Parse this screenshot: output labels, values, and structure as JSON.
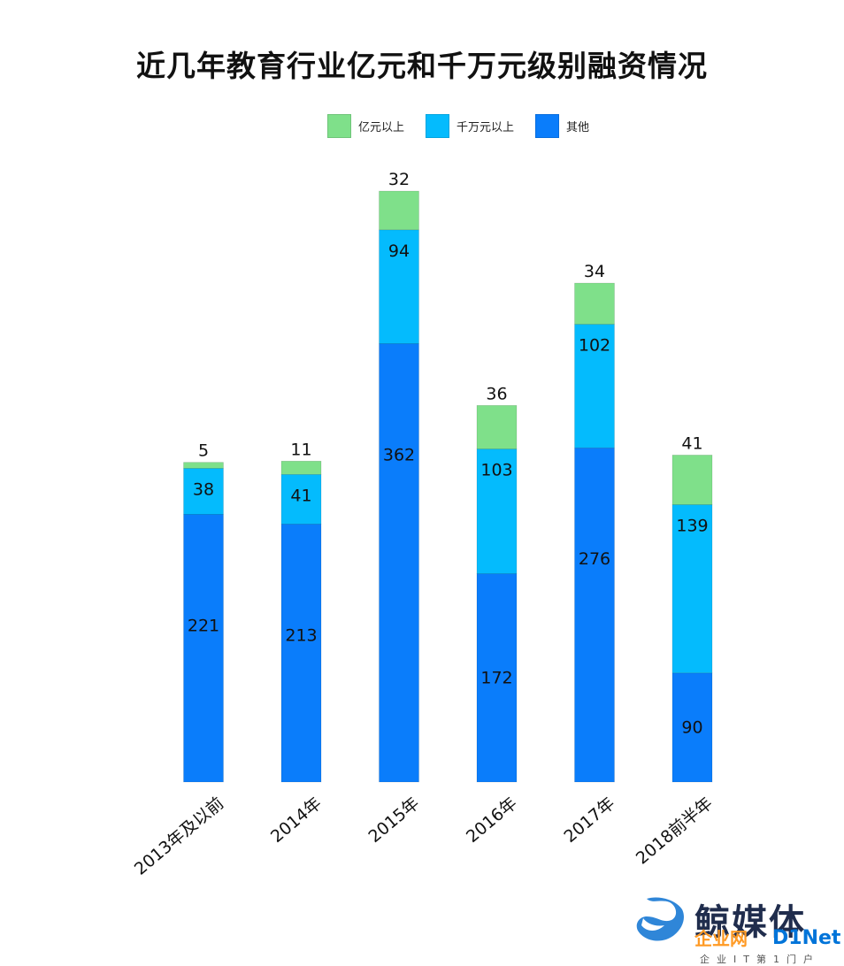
{
  "chart_data": {
    "type": "bar",
    "stacked": true,
    "title": "近几年教育行业亿元和千万元级别融资情况",
    "categories": [
      "2013年及以前",
      "2014年",
      "2015年",
      "2016年",
      "2017年",
      "2018前半年"
    ],
    "series": [
      {
        "name": "其他",
        "color": "#0a7dfb",
        "values": [
          221,
          213,
          362,
          172,
          276,
          90
        ]
      },
      {
        "name": "千万元以上",
        "color": "#04bbfd",
        "values": [
          38,
          41,
          94,
          103,
          102,
          139
        ]
      },
      {
        "name": "亿元以上",
        "color": "#7fe08a",
        "values": [
          5,
          11,
          32,
          36,
          34,
          41
        ]
      }
    ],
    "grid": false,
    "legend_position": "top"
  },
  "watermark": {
    "cn": "鲸媒体",
    "d1_orange": "企业网",
    "d1_blue": "D1Net",
    "sub": "企业IT第1门户"
  }
}
